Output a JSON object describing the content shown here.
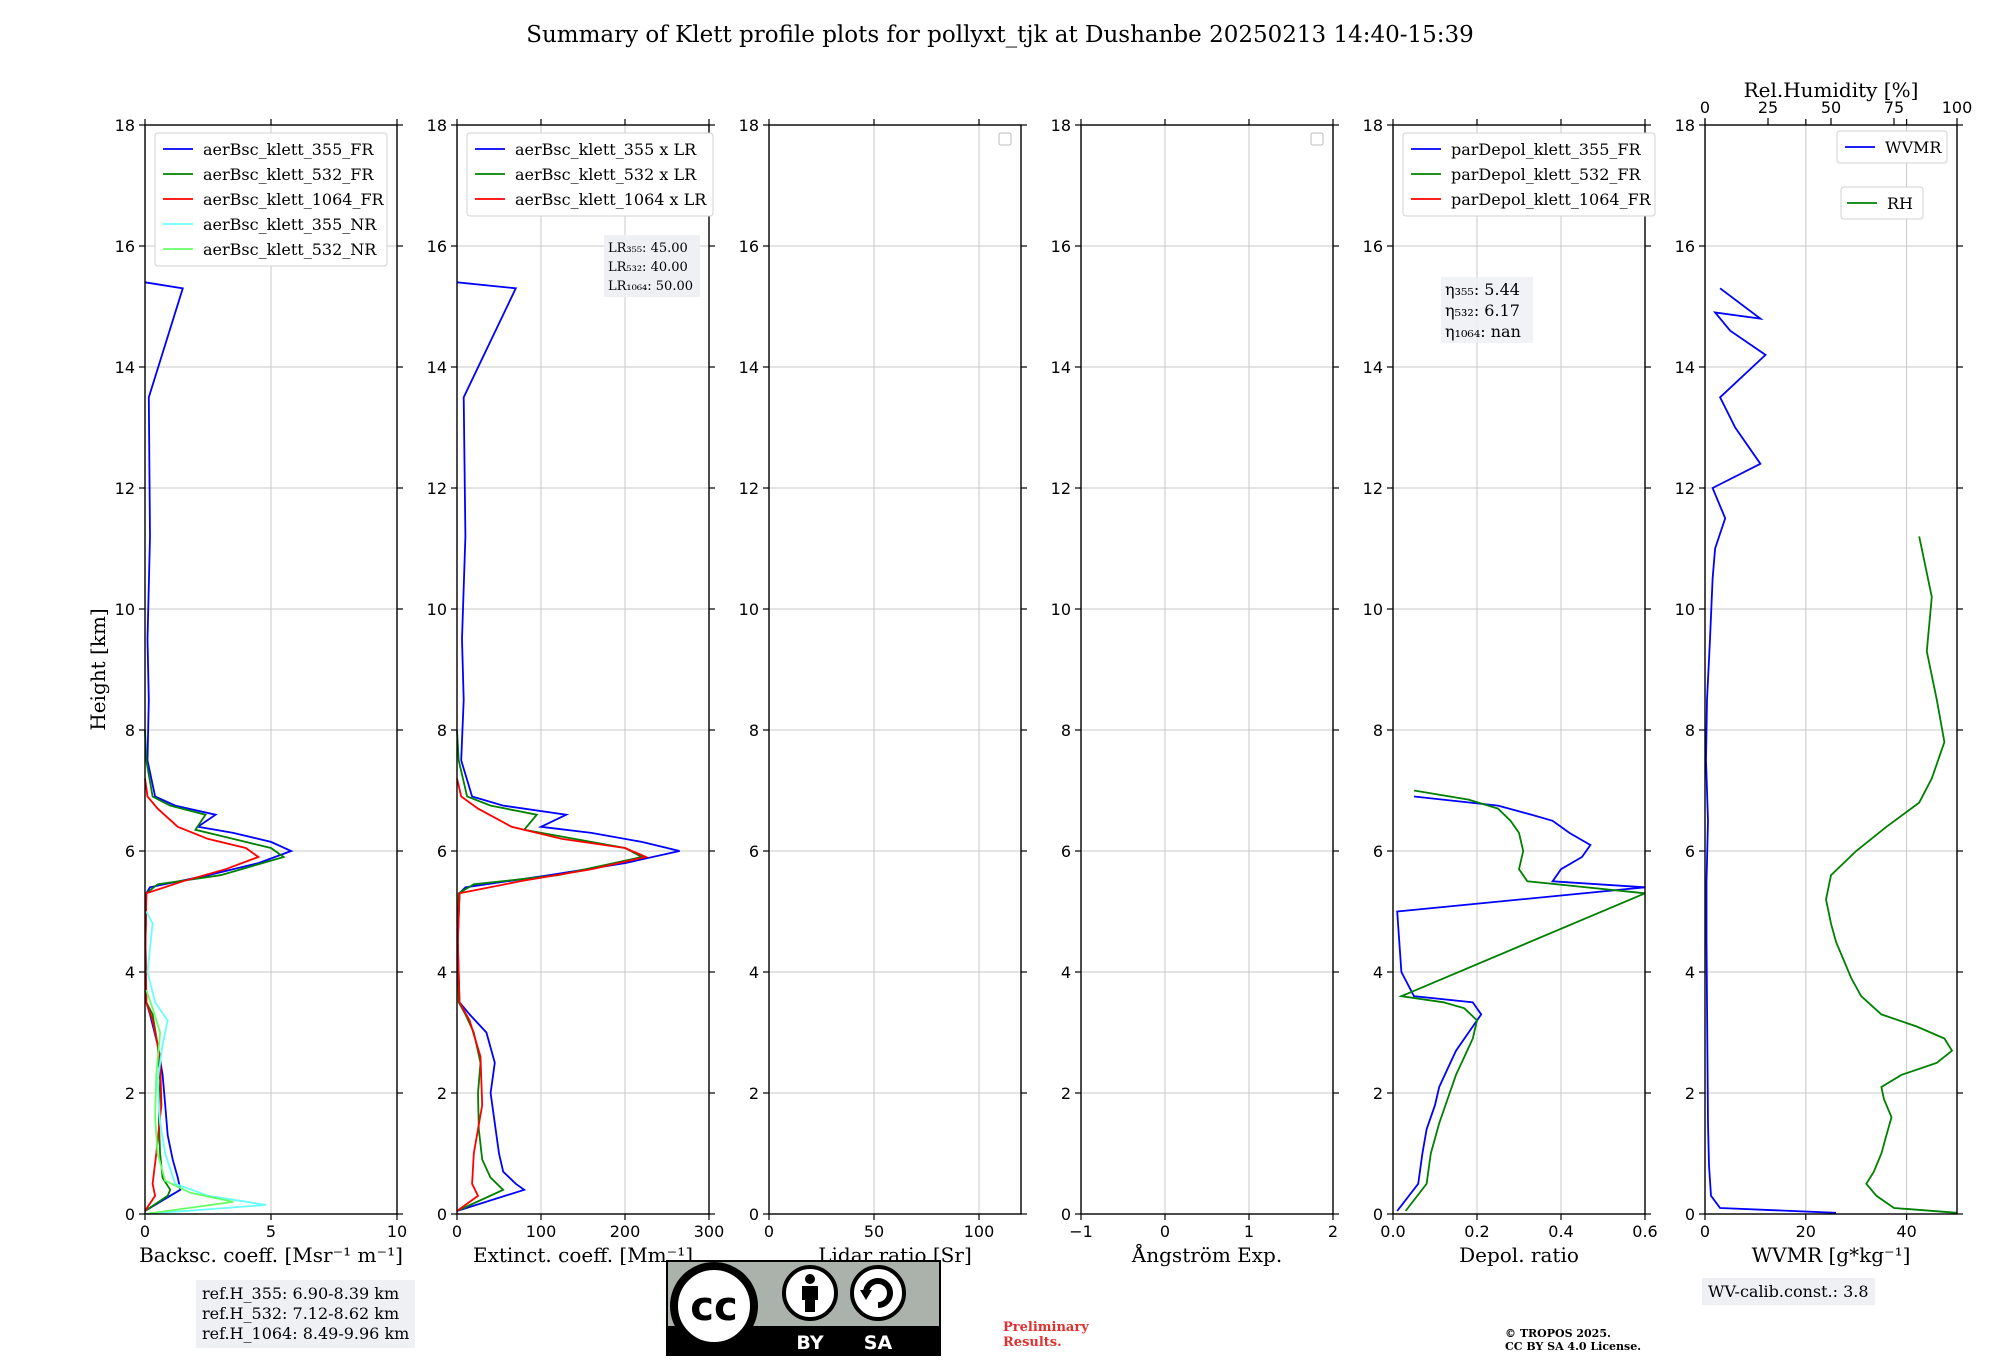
{
  "title": "Summary of Klett profile plots for pollyxt_tjk at Dushanbe 20250213 14:40-15:39",
  "ref_heights": [
    "ref.H_355: 6.90-8.39 km",
    "ref.H_532: 7.12-8.62 km",
    "ref.H_1064: 8.49-9.96 km"
  ],
  "wv_calib": "WV-calib.const.: 3.8",
  "preliminary": [
    "Preliminary",
    "Results."
  ],
  "copyright": [
    "© TROPOS 2025.",
    "CC BY SA 4.0 License."
  ],
  "license_badge": {
    "cc": "cc",
    "by": "BY",
    "sa": "SA"
  },
  "colors": {
    "c355": "#0000ff",
    "c532": "#008000",
    "c1064": "#ff0000",
    "c355nr": "#66ffff",
    "c532nr": "#66ff66",
    "grid": "#c8c8c8"
  },
  "chart_data": [
    {
      "type": "line",
      "title": "",
      "xlabel": "Backsc. coeff. [Msr⁻¹ m⁻¹]",
      "ylabel": "Height [km]",
      "xlim": [
        0,
        10
      ],
      "ylim": [
        0,
        18
      ],
      "xticks": [
        "0",
        "5",
        "10"
      ],
      "yticks": [
        "0",
        "2",
        "4",
        "6",
        "8",
        "10",
        "12",
        "14",
        "16",
        "18"
      ],
      "legend": [
        "aerBsc_klett_355_FR",
        "aerBsc_klett_532_FR",
        "aerBsc_klett_1064_FR",
        "aerBsc_klett_355_NR",
        "aerBsc_klett_532_NR"
      ],
      "series": [
        {
          "name": "aerBsc_klett_355_FR",
          "x": [
            0,
            1.0,
            1.4,
            1.3,
            1.1,
            0.9,
            0.8,
            0.7,
            0.5,
            0.2,
            0.05,
            0.02,
            0.05,
            0.2,
            2.5,
            4.5,
            5.8,
            5.0,
            3.5,
            2.1,
            2.8,
            1.2,
            0.4,
            0.1,
            0.15,
            0.1,
            0.2,
            0.15,
            1.5,
            0
          ],
          "y": [
            0.05,
            0.3,
            0.4,
            0.6,
            0.9,
            1.3,
            1.8,
            2.3,
            2.8,
            3.3,
            3.5,
            4.5,
            5.3,
            5.4,
            5.6,
            5.8,
            6.0,
            6.15,
            6.3,
            6.4,
            6.6,
            6.75,
            6.9,
            7.5,
            8.5,
            9.5,
            11.2,
            13.5,
            15.3,
            15.4
          ]
        },
        {
          "name": "aerBsc_klett_532_FR",
          "x": [
            0,
            0.9,
            1.0,
            0.7,
            0.6,
            0.55,
            0.6,
            0.5,
            0.3,
            0.05,
            0.02,
            0.05,
            0.5,
            3.0,
            5.5,
            5.0,
            3.5,
            2.0,
            2.4,
            1.0,
            0.3,
            0.05,
            0
          ],
          "y": [
            0.05,
            0.3,
            0.4,
            0.6,
            1.0,
            1.5,
            2.2,
            2.8,
            3.3,
            3.5,
            4.5,
            5.3,
            5.45,
            5.6,
            5.9,
            6.05,
            6.2,
            6.35,
            6.6,
            6.75,
            6.9,
            7.5,
            8.0
          ]
        },
        {
          "name": "aerBsc_klett_1064_FR",
          "x": [
            0,
            0.4,
            0.3,
            0.45,
            0.65,
            0.6,
            0.3,
            0.05,
            0.02,
            0.05,
            1.5,
            3.2,
            4.5,
            4.0,
            2.5,
            1.3,
            0.5,
            0.1,
            0
          ],
          "y": [
            0.05,
            0.3,
            0.5,
            1.0,
            1.8,
            2.6,
            3.2,
            3.5,
            4.5,
            5.3,
            5.5,
            5.7,
            5.9,
            6.05,
            6.2,
            6.4,
            6.7,
            6.9,
            7.2
          ]
        },
        {
          "name": "aerBsc_klett_355_NR",
          "x": [
            0,
            4.8,
            2.5,
            1.2,
            0.8,
            0.6,
            0.5,
            0.7,
            0.9,
            0.4,
            0.1,
            0.3,
            0.05
          ],
          "y": [
            0,
            0.15,
            0.3,
            0.5,
            1.0,
            1.5,
            2.2,
            2.8,
            3.2,
            3.5,
            4.0,
            4.8,
            5.0
          ]
        },
        {
          "name": "aerBsc_klett_532_NR",
          "x": [
            0,
            3.5,
            1.8,
            0.8,
            0.5,
            0.4,
            0.45,
            0.6,
            0.3,
            0.05
          ],
          "y": [
            0,
            0.2,
            0.35,
            0.55,
            1.0,
            1.6,
            2.3,
            3.0,
            3.4,
            3.7
          ]
        }
      ]
    },
    {
      "type": "line",
      "xlabel": "Extinct. coeff. [Mm⁻¹]",
      "xlim": [
        0,
        300
      ],
      "ylim": [
        0,
        18
      ],
      "xticks": [
        "0",
        "100",
        "200",
        "300"
      ],
      "yticks": [
        "0",
        "2",
        "4",
        "6",
        "8",
        "10",
        "12",
        "14",
        "16",
        "18"
      ],
      "legend": [
        "aerBsc_klett_355 x LR",
        "aerBsc_klett_532 x LR",
        "aerBsc_klett_1064 x LR"
      ],
      "lidar_ratios": [
        "LR₃₅₅: 45.00",
        "LR₅₃₂: 40.00",
        "LR₁₀₆₄: 50.00"
      ],
      "series": [
        {
          "name": "aerBsc_klett_355 x LR",
          "x": [
            0,
            80,
            70,
            55,
            50,
            45,
            40,
            45,
            35,
            15,
            3,
            1,
            3,
            10,
            110,
            200,
            265,
            220,
            160,
            100,
            130,
            55,
            18,
            5,
            8,
            6,
            10,
            8,
            70,
            0
          ],
          "y": [
            0.05,
            0.4,
            0.5,
            0.7,
            1.0,
            1.5,
            2.0,
            2.5,
            3.0,
            3.3,
            3.5,
            4.5,
            5.3,
            5.4,
            5.6,
            5.8,
            6.0,
            6.15,
            6.3,
            6.4,
            6.6,
            6.75,
            6.9,
            7.5,
            8.5,
            9.5,
            11.2,
            13.5,
            15.3,
            15.4
          ]
        },
        {
          "name": "aerBsc_klett_532 x LR",
          "x": [
            0,
            55,
            40,
            30,
            26,
            25,
            28,
            20,
            10,
            2,
            1,
            2,
            20,
            120,
            220,
            200,
            140,
            80,
            95,
            40,
            12,
            2,
            0
          ],
          "y": [
            0.05,
            0.4,
            0.6,
            0.9,
            1.4,
            2.0,
            2.5,
            3.0,
            3.3,
            3.5,
            4.5,
            5.3,
            5.45,
            5.6,
            5.9,
            6.05,
            6.2,
            6.35,
            6.6,
            6.75,
            6.9,
            7.5,
            8.0
          ]
        },
        {
          "name": "aerBsc_klett_1064 x LR",
          "x": [
            0,
            25,
            18,
            20,
            30,
            28,
            15,
            3,
            1,
            3,
            75,
            160,
            225,
            200,
            125,
            65,
            25,
            5,
            0
          ],
          "y": [
            0.05,
            0.3,
            0.5,
            1.0,
            1.8,
            2.6,
            3.2,
            3.5,
            4.5,
            5.3,
            5.5,
            5.7,
            5.9,
            6.05,
            6.2,
            6.4,
            6.7,
            6.9,
            7.2
          ]
        }
      ]
    },
    {
      "type": "line",
      "xlabel": "Lidar ratio [Sr]",
      "xlim": [
        0,
        120
      ],
      "ylim": [
        0,
        18
      ],
      "xticks": [
        "0",
        "50",
        "100"
      ],
      "yticks": [
        "0",
        "2",
        "4",
        "6",
        "8",
        "10",
        "12",
        "14",
        "16",
        "18"
      ],
      "series": []
    },
    {
      "type": "line",
      "xlabel": "Ångström Exp.",
      "xlim": [
        -1,
        2
      ],
      "ylim": [
        0,
        18
      ],
      "xticks": [
        "−1",
        "0",
        "1",
        "2"
      ],
      "yticks": [
        "0",
        "2",
        "4",
        "6",
        "8",
        "10",
        "12",
        "14",
        "16",
        "18"
      ],
      "series": []
    },
    {
      "type": "line",
      "xlabel": "Depol. ratio",
      "xlim": [
        0,
        0.6
      ],
      "ylim": [
        0,
        18
      ],
      "xticks": [
        "0.0",
        "0.2",
        "0.4",
        "0.6"
      ],
      "yticks": [
        "0",
        "2",
        "4",
        "6",
        "8",
        "10",
        "12",
        "14",
        "16",
        "18"
      ],
      "legend": [
        "parDepol_klett_355_FR",
        "parDepol_klett_532_FR",
        "parDepol_klett_1064_FR"
      ],
      "eta": [
        "η₃₅₅: 5.44",
        "η₅₃₂: 6.17",
        "η₁₀₆₄: nan"
      ],
      "series": [
        {
          "name": "parDepol_klett_355_FR",
          "x": [
            0.01,
            0.06,
            0.07,
            0.08,
            0.1,
            0.11,
            0.13,
            0.15,
            0.18,
            0.21,
            0.19,
            0.05,
            0.02,
            0.01,
            0.6,
            0.38,
            0.4,
            0.45,
            0.47,
            0.42,
            0.38,
            0.33,
            0.25,
            0.05
          ],
          "y": [
            0.05,
            0.5,
            1.0,
            1.4,
            1.8,
            2.1,
            2.4,
            2.7,
            3.0,
            3.3,
            3.5,
            3.6,
            4.0,
            5.0,
            5.4,
            5.5,
            5.7,
            5.9,
            6.1,
            6.3,
            6.5,
            6.6,
            6.75,
            6.9
          ]
        },
        {
          "name": "parDepol_klett_532_FR",
          "x": [
            0.03,
            0.08,
            0.09,
            0.11,
            0.13,
            0.15,
            0.17,
            0.19,
            0.2,
            0.17,
            0.12,
            0.02,
            0.6,
            0.32,
            0.3,
            0.31,
            0.3,
            0.28,
            0.25,
            0.18,
            0.05
          ],
          "y": [
            0.05,
            0.5,
            1.0,
            1.5,
            1.9,
            2.3,
            2.6,
            2.9,
            3.2,
            3.4,
            3.5,
            3.6,
            5.3,
            5.5,
            5.7,
            6.0,
            6.3,
            6.5,
            6.7,
            6.85,
            7.0
          ]
        }
      ]
    },
    {
      "type": "line",
      "xlabel": "WVMR [g*kg⁻¹]",
      "top_xlabel": "Rel.Humidity [%]",
      "xlim": [
        0,
        50
      ],
      "ylim": [
        0,
        18
      ],
      "top_xlim": [
        0,
        100
      ],
      "xticks": [
        "0",
        "20",
        "40"
      ],
      "top_xticks": [
        "0",
        "25",
        "50",
        "75",
        "100"
      ],
      "yticks": [
        "0",
        "2",
        "4",
        "6",
        "8",
        "10",
        "12",
        "14",
        "16",
        "18"
      ],
      "legend": [
        "WVMR",
        "RH"
      ],
      "series": [
        {
          "name": "WVMR",
          "x": [
            26,
            3,
            1.2,
            0.8,
            0.6,
            0.5,
            0.4,
            0.3,
            0.3,
            0.6,
            0.2,
            0.4,
            1.0,
            1.5,
            2.0,
            4.0,
            1.5,
            11.0,
            6.0,
            3.0,
            12.0,
            5.0,
            2.0,
            11.0,
            3.0
          ],
          "y": [
            0.02,
            0.1,
            0.3,
            0.8,
            1.5,
            2.5,
            3.5,
            4.5,
            5.5,
            6.5,
            7.5,
            8.5,
            9.5,
            10.5,
            11.0,
            11.5,
            12.0,
            12.4,
            13.0,
            13.5,
            14.2,
            14.6,
            14.9,
            14.8,
            15.3
          ]
        },
        {
          "name": "RH",
          "x": [
            100,
            75,
            68,
            64,
            67,
            70,
            72,
            74,
            71,
            70,
            78,
            92,
            98,
            95,
            84,
            70,
            62,
            58,
            55,
            52,
            50,
            48,
            50,
            60,
            72,
            85,
            90,
            95,
            92,
            88,
            90,
            85
          ],
          "y": [
            0.02,
            0.1,
            0.3,
            0.5,
            0.7,
            1.0,
            1.3,
            1.6,
            1.9,
            2.1,
            2.3,
            2.5,
            2.7,
            2.9,
            3.1,
            3.3,
            3.6,
            3.9,
            4.2,
            4.5,
            4.8,
            5.2,
            5.6,
            6.0,
            6.4,
            6.8,
            7.2,
            7.8,
            8.5,
            9.3,
            10.2,
            11.2
          ]
        }
      ]
    }
  ]
}
